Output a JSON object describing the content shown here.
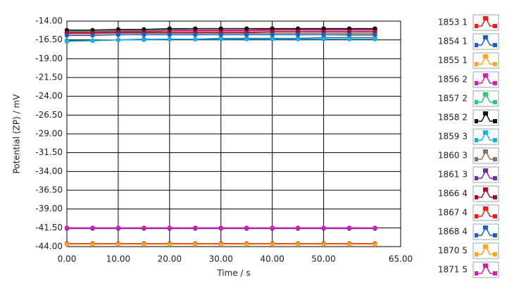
{
  "chart_data": {
    "type": "line",
    "x_label": "Time / s",
    "y_label": "Potential (ZP) / mV",
    "x": [
      0,
      5,
      10,
      15,
      20,
      25,
      30,
      35,
      40,
      45,
      50,
      55,
      60
    ],
    "xlim": [
      0,
      65
    ],
    "xticks": [
      {
        "value": 0,
        "label": "0.00"
      },
      {
        "value": 10,
        "label": "10.00"
      },
      {
        "value": 20,
        "label": "20.00"
      },
      {
        "value": 30,
        "label": "30.00"
      },
      {
        "value": 40,
        "label": "40.00"
      },
      {
        "value": 50,
        "label": "50.00"
      },
      {
        "value": 65,
        "label": "65.00"
      }
    ],
    "ylim": [
      -44,
      -14
    ],
    "yticks": [
      {
        "value": -14,
        "label": "-14.00"
      },
      {
        "value": -16.5,
        "label": "-16.50"
      },
      {
        "value": -19,
        "label": "-19.00"
      },
      {
        "value": -21.5,
        "label": "-21.50"
      },
      {
        "value": -24,
        "label": "-24.00"
      },
      {
        "value": -26.5,
        "label": "-26.50"
      },
      {
        "value": -29,
        "label": "-29.00"
      },
      {
        "value": -31.5,
        "label": "-31.50"
      },
      {
        "value": -34,
        "label": "-34.00"
      },
      {
        "value": -36.5,
        "label": "-36.50"
      },
      {
        "value": -39,
        "label": "-39.00"
      },
      {
        "value": -41.5,
        "label": "-41.50"
      },
      {
        "value": -44,
        "label": "-44.00"
      }
    ],
    "grid": true,
    "series": [
      {
        "name": "1853 1",
        "color": "#e8201c",
        "values": [
          -15.4,
          -15.4,
          -15.3,
          -15.3,
          -15.2,
          -15.2,
          -15.2,
          -15.2,
          -15.1,
          -15.1,
          -15.1,
          -15.1,
          -15.1
        ]
      },
      {
        "name": "1854 1",
        "color": "#1f5fbf",
        "values": [
          -16.6,
          -16.6,
          -16.5,
          -16.4,
          -16.4,
          -16.4,
          -16.3,
          -16.3,
          -16.3,
          -16.3,
          -16.2,
          -16.2,
          -16.2
        ]
      },
      {
        "name": "1855 1",
        "color": "#f5a623",
        "values": [
          -15.8,
          -15.8,
          -15.8,
          -15.8,
          -15.8,
          -15.8,
          -15.8,
          -15.8,
          -15.8,
          -15.8,
          -15.8,
          -15.9,
          -15.9
        ]
      },
      {
        "name": "1856 2",
        "color": "#d020b0",
        "values": [
          -15.5,
          -15.5,
          -15.4,
          -15.4,
          -15.3,
          -15.3,
          -15.3,
          -15.3,
          -15.2,
          -15.2,
          -15.2,
          -15.2,
          -15.2
        ]
      },
      {
        "name": "1857 2",
        "color": "#2ecc71",
        "values": [
          -15.3,
          -15.3,
          -15.2,
          -15.2,
          -15.1,
          -15.0,
          -15.0,
          -15.0,
          -15.0,
          -15.0,
          -15.0,
          -15.0,
          -15.0
        ]
      },
      {
        "name": "1858 2",
        "color": "#111111",
        "values": [
          -15.2,
          -15.2,
          -15.1,
          -15.1,
          -15.0,
          -15.0,
          -15.0,
          -15.0,
          -15.0,
          -15.0,
          -15.0,
          -15.0,
          -15.0
        ]
      },
      {
        "name": "1859 3",
        "color": "#1ab0e0",
        "values": [
          -16.7,
          -16.6,
          -16.5,
          -16.5,
          -16.4,
          -16.4,
          -16.4,
          -16.4,
          -16.4,
          -16.4,
          -16.4,
          -16.4,
          -16.4
        ]
      },
      {
        "name": "1860 3",
        "color": "#8a7060",
        "values": [
          -15.6,
          -15.6,
          -15.6,
          -15.6,
          -15.6,
          -15.6,
          -15.6,
          -15.6,
          -15.6,
          -15.6,
          -15.6,
          -15.6,
          -15.6
        ]
      },
      {
        "name": "1861 3",
        "color": "#7030a0",
        "values": [
          -41.6,
          -41.6,
          -41.6,
          -41.6,
          -41.6,
          -41.6,
          -41.6,
          -41.6,
          -41.6,
          -41.6,
          -41.6,
          -41.6,
          -41.6
        ]
      },
      {
        "name": "1866 4",
        "color": "#a0102a",
        "values": [
          -15.6,
          -15.6,
          -15.5,
          -15.5,
          -15.5,
          -15.5,
          -15.5,
          -15.5,
          -15.4,
          -15.4,
          -15.4,
          -15.4,
          -15.4
        ]
      },
      {
        "name": "1867 4",
        "color": "#e8201c",
        "values": [
          -43.6,
          -43.6,
          -43.6,
          -43.6,
          -43.6,
          -43.6,
          -43.6,
          -43.6,
          -43.6,
          -43.6,
          -43.6,
          -43.6,
          -43.6
        ]
      },
      {
        "name": "1868 4",
        "color": "#1f5fbf",
        "values": [
          -15.9,
          -15.9,
          -15.8,
          -15.8,
          -15.8,
          -15.8,
          -15.8,
          -15.8,
          -15.8,
          -15.8,
          -15.8,
          -15.8,
          -15.8
        ]
      },
      {
        "name": "1870 5",
        "color": "#f5a623",
        "values": [
          -43.7,
          -43.7,
          -43.7,
          -43.7,
          -43.7,
          -43.7,
          -43.7,
          -43.7,
          -43.7,
          -43.7,
          -43.7,
          -43.7,
          -43.7
        ]
      },
      {
        "name": "1871 5",
        "color": "#d020b0",
        "values": [
          -41.5,
          -41.5,
          -41.5,
          -41.5,
          -41.5,
          -41.5,
          -41.5,
          -41.5,
          -41.5,
          -41.5,
          -41.5,
          -41.5,
          -41.5
        ]
      }
    ]
  }
}
